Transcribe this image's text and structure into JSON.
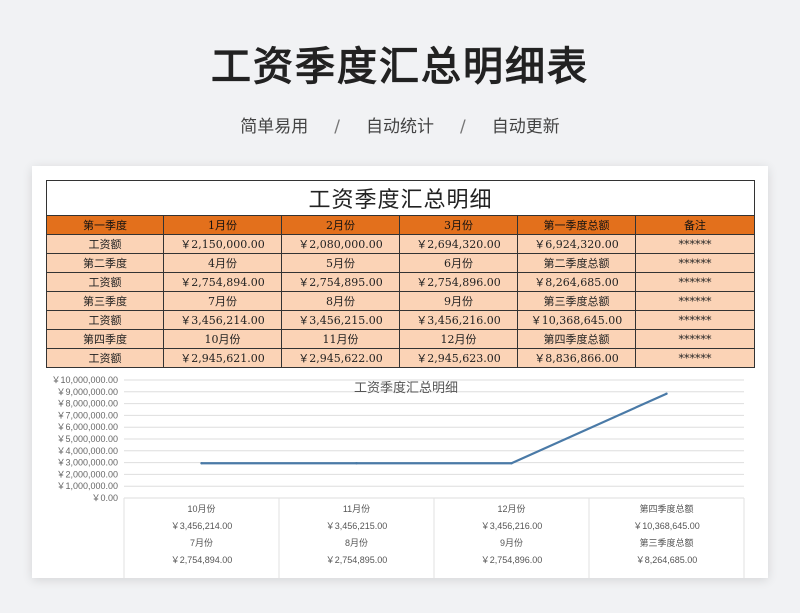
{
  "page": {
    "title": "工资季度汇总明细表",
    "tags": [
      "简单易用",
      "自动统计",
      "自动更新"
    ],
    "separator": "/"
  },
  "table": {
    "title": "工资季度汇总明细",
    "rows": [
      {
        "kind": "hdr",
        "cells": [
          "第一季度",
          "1月份",
          "2月份",
          "3月份",
          "第一季度总额",
          "备注"
        ]
      },
      {
        "kind": "row",
        "cells": [
          "工资额",
          "￥2,150,000.00",
          "￥2,080,000.00",
          "￥2,694,320.00",
          "￥6,924,320.00",
          "******"
        ]
      },
      {
        "kind": "row",
        "cells": [
          "第二季度",
          "4月份",
          "5月份",
          "6月份",
          "第二季度总额",
          "******"
        ]
      },
      {
        "kind": "row",
        "cells": [
          "工资额",
          "￥2,754,894.00",
          "￥2,754,895.00",
          "￥2,754,896.00",
          "￥8,264,685.00",
          "******"
        ]
      },
      {
        "kind": "row",
        "cells": [
          "第三季度",
          "7月份",
          "8月份",
          "9月份",
          "第三季度总额",
          "******"
        ]
      },
      {
        "kind": "row",
        "cells": [
          "工资额",
          "￥3,456,214.00",
          "￥3,456,215.00",
          "￥3,456,216.00",
          "￥10,368,645.00",
          "******"
        ]
      },
      {
        "kind": "row",
        "cells": [
          "第四季度",
          "10月份",
          "11月份",
          "12月份",
          "第四季度总额",
          "******"
        ]
      },
      {
        "kind": "row",
        "cells": [
          "工资额",
          "￥2,945,621.00",
          "￥2,945,622.00",
          "￥2,945,623.00",
          "￥8,836,866.00",
          "******"
        ]
      }
    ]
  },
  "chart_data": {
    "type": "line",
    "title": "工资季度汇总明细",
    "ylim": [
      0,
      10000000
    ],
    "yticks": [
      "￥10,000,000.00",
      "￥9,000,000.00",
      "￥8,000,000.00",
      "￥7,000,000.00",
      "￥6,000,000.00",
      "￥5,000,000.00",
      "￥4,000,000.00",
      "￥3,000,000.00",
      "￥2,000,000.00",
      "￥1,000,000.00",
      "￥0.00"
    ],
    "categories": [
      [
        "10月份",
        "￥3,456,214.00",
        "7月份",
        "￥2,754,894.00"
      ],
      [
        "11月份",
        "￥3,456,215.00",
        "8月份",
        "￥2,754,895.00"
      ],
      [
        "12月份",
        "￥3,456,216.00",
        "9月份",
        "￥2,754,896.00"
      ],
      [
        "第四季度总额",
        "￥10,368,645.00",
        "第三季度总额",
        "￥8,264,685.00"
      ]
    ],
    "values": [
      2945621,
      2945622,
      2945623,
      8836866
    ],
    "color": "#4a7aa7",
    "grid": true
  }
}
